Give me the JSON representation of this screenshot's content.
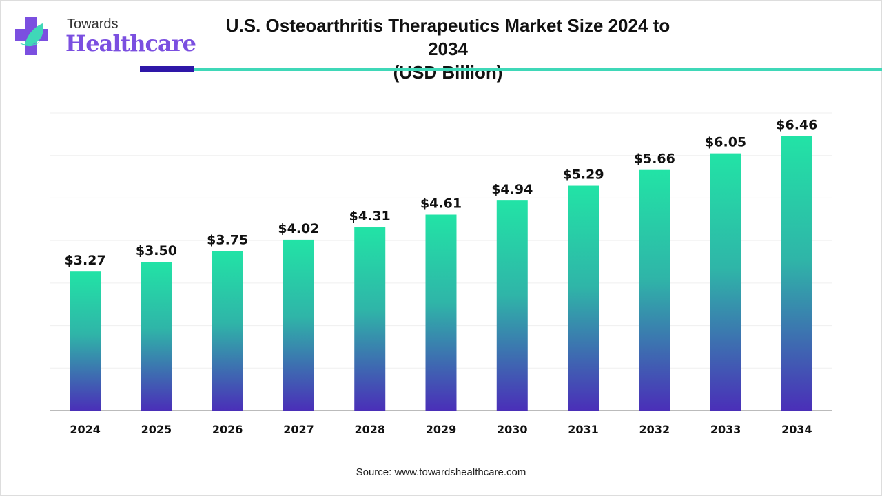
{
  "brand": {
    "line1": "Towards",
    "line2": "Healthcare",
    "primary_color": "#7b4fe0",
    "accent_color": "#3fd8b8"
  },
  "source": "Source: www.towardshealthcare.com",
  "chart_data": {
    "type": "bar",
    "title": "U.S. Osteoarthritis Therapeutics Market Size 2024 to 2034",
    "subtitle": "(USD Billion)",
    "categories": [
      "2024",
      "2025",
      "2026",
      "2027",
      "2028",
      "2029",
      "2030",
      "2031",
      "2032",
      "2033",
      "2034"
    ],
    "values": [
      3.27,
      3.5,
      3.75,
      4.02,
      4.31,
      4.61,
      4.94,
      5.29,
      5.66,
      6.05,
      6.46
    ],
    "data_labels": [
      "$3.27",
      "$3.50",
      "$3.75",
      "$4.02",
      "$4.31",
      "$4.61",
      "$4.94",
      "$5.29",
      "$5.66",
      "$6.05",
      "$6.46"
    ],
    "xlabel": "",
    "ylabel": "",
    "ylim": [
      0,
      7
    ],
    "grid": true,
    "y_axis_labels_shown": false,
    "bar_gradient": {
      "top": "#22e3a6",
      "bottom": "#4a2fb8"
    }
  }
}
